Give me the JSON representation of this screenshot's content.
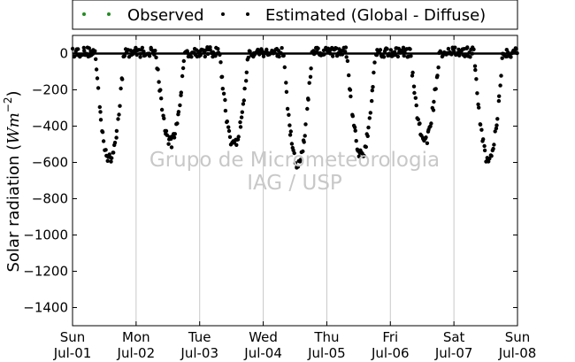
{
  "chart_data": {
    "type": "scatter",
    "ylabel": "Solar radiation",
    "ylabel_unit_base": "Wm",
    "ylabel_unit_exp": "−2",
    "ylim": [
      -1500,
      100
    ],
    "yticks": [
      0,
      -200,
      -400,
      -600,
      -800,
      -1000,
      -1200,
      -1400
    ],
    "xticks": [
      {
        "day": "Sun",
        "date": "Jul-01"
      },
      {
        "day": "Mon",
        "date": "Jul-02"
      },
      {
        "day": "Tue",
        "date": "Jul-03"
      },
      {
        "day": "Wed",
        "date": "Jul-04"
      },
      {
        "day": "Thu",
        "date": "Jul-05"
      },
      {
        "day": "Fri",
        "date": "Jul-06"
      },
      {
        "day": "Sat",
        "date": "Jul-07"
      },
      {
        "day": "Sun",
        "date": "Jul-08"
      }
    ],
    "grid": "vertical",
    "legend_position": "top",
    "zero_line": true,
    "series": [
      {
        "name": "Observed",
        "color": "#228b22",
        "points": []
      },
      {
        "name": "Estimated (Global - Diffuse)",
        "color": "#000000",
        "daily_minimum": [
          {
            "date": "Jul-01",
            "hour": 14,
            "value": -585
          },
          {
            "date": "Jul-02",
            "hour": 13,
            "value": -490
          },
          {
            "date": "Jul-03",
            "hour": 13,
            "value": -505
          },
          {
            "date": "Jul-04",
            "hour": 13,
            "value": -615
          },
          {
            "date": "Jul-05",
            "hour": 13,
            "value": -560
          },
          {
            "date": "Jul-06",
            "hour": 13,
            "value": -480
          },
          {
            "date": "Jul-07",
            "hour": 13,
            "value": -590
          }
        ]
      }
    ]
  },
  "watermark": {
    "line1": "Grupo de Micrometeorologia",
    "line2": "IAG / USP"
  },
  "colors": {
    "observed": "#228b22",
    "estimated": "#000000",
    "grid": "#c8c8c8",
    "watermark": "#c8c8c8"
  }
}
